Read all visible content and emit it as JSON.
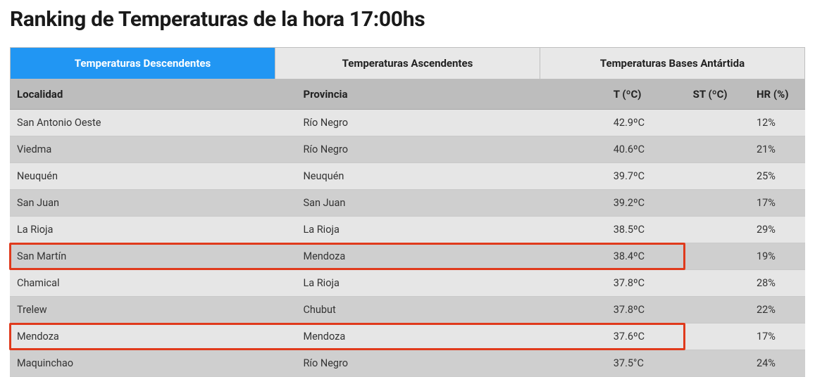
{
  "title": "Ranking de Temperaturas de la hora 17:00hs",
  "tabs": [
    {
      "label": "Temperaturas Descendentes",
      "active": true
    },
    {
      "label": "Temperaturas Ascendentes",
      "active": false
    },
    {
      "label": "Temperaturas Bases Antártida",
      "active": false
    }
  ],
  "table": {
    "columns": [
      {
        "key": "localidad",
        "label": "Localidad",
        "class": "col-loc"
      },
      {
        "key": "provincia",
        "label": "Provincia",
        "class": "col-prov"
      },
      {
        "key": "t",
        "label": "T (ºC)",
        "class": "col-t"
      },
      {
        "key": "st",
        "label": "ST (ºC)",
        "class": "col-st"
      },
      {
        "key": "hr",
        "label": "HR (%)",
        "class": "col-hr"
      }
    ],
    "rows": [
      {
        "localidad": "San Antonio Oeste",
        "provincia": "Río Negro",
        "t": "42.9ºC",
        "st": "",
        "hr": "12%",
        "highlight": false
      },
      {
        "localidad": "Viedma",
        "provincia": "Río Negro",
        "t": "40.6ºC",
        "st": "",
        "hr": "21%",
        "highlight": false
      },
      {
        "localidad": "Neuquén",
        "provincia": "Neuquén",
        "t": "39.7ºC",
        "st": "",
        "hr": "25%",
        "highlight": false
      },
      {
        "localidad": "San Juan",
        "provincia": "San Juan",
        "t": "39.2ºC",
        "st": "",
        "hr": "17%",
        "highlight": false
      },
      {
        "localidad": "La Rioja",
        "provincia": "La Rioja",
        "t": "38.5ºC",
        "st": "",
        "hr": "29%",
        "highlight": false
      },
      {
        "localidad": "San Martín",
        "provincia": "Mendoza",
        "t": "38.4ºC",
        "st": "",
        "hr": "19%",
        "highlight": true
      },
      {
        "localidad": "Chamical",
        "provincia": "La Rioja",
        "t": "37.8ºC",
        "st": "",
        "hr": "28%",
        "highlight": false
      },
      {
        "localidad": "Trelew",
        "provincia": "Chubut",
        "t": "37.8ºC",
        "st": "",
        "hr": "22%",
        "highlight": false
      },
      {
        "localidad": "Mendoza",
        "provincia": "Mendoza",
        "t": "37.6ºC",
        "st": "",
        "hr": "17%",
        "highlight": true
      },
      {
        "localidad": "Maquinchao",
        "provincia": "Río Negro",
        "t": "37.5°C",
        "st": "",
        "hr": "24%",
        "highlight": false
      }
    ],
    "highlight_color": "#e03a1c",
    "header_bg": "#bdbdbd",
    "row_odd_bg": "#e6e6e6",
    "row_even_bg": "#cfcfcf",
    "active_tab_bg": "#2196f3",
    "inactive_tab_bg": "#e8e8e8"
  }
}
